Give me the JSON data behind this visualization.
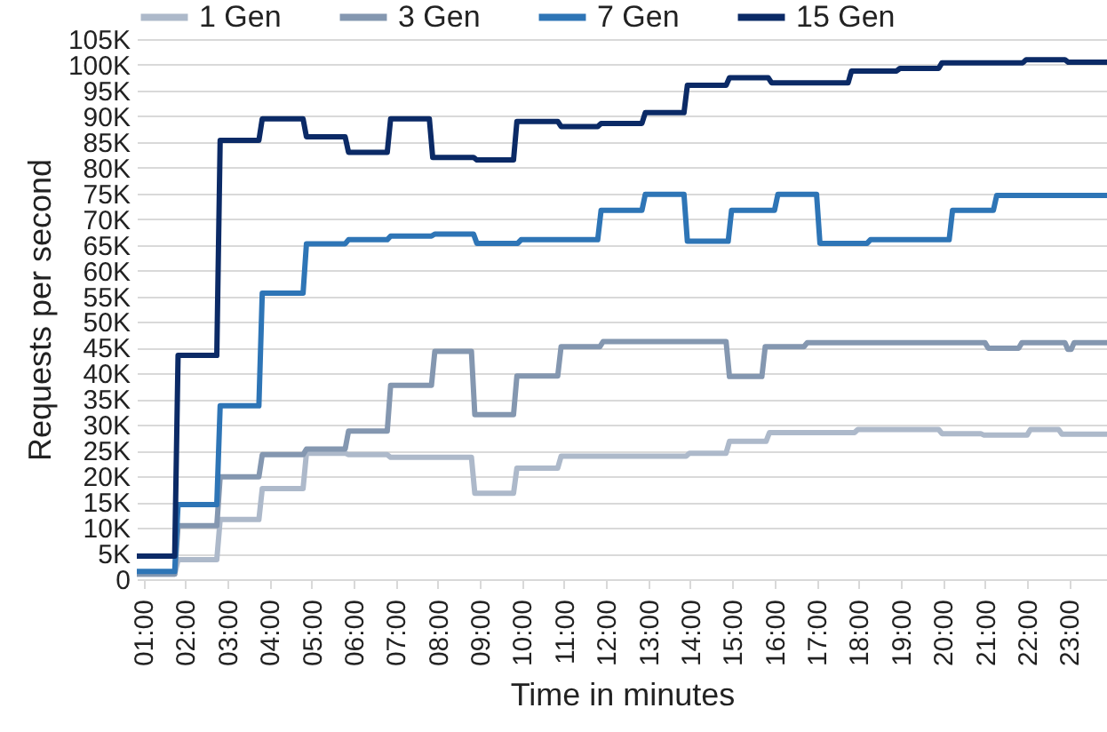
{
  "chart_data": {
    "type": "line",
    "xlabel": "Time in minutes",
    "ylabel": "Requests per second",
    "legend": "top",
    "grid": "y",
    "xlim": [
      0.85,
      23.9
    ],
    "xticks": [
      {
        "value": 1,
        "label": "01:00"
      },
      {
        "value": 2,
        "label": "02:00"
      },
      {
        "value": 3,
        "label": "03:00"
      },
      {
        "value": 4,
        "label": "04:00"
      },
      {
        "value": 5,
        "label": "05:00"
      },
      {
        "value": 6,
        "label": "06:00"
      },
      {
        "value": 7,
        "label": "07:00"
      },
      {
        "value": 8,
        "label": "08:00"
      },
      {
        "value": 9,
        "label": "09:00"
      },
      {
        "value": 10,
        "label": "10:00"
      },
      {
        "value": 11,
        "label": "11:00"
      },
      {
        "value": 12,
        "label": "12:00"
      },
      {
        "value": 13,
        "label": "13:00"
      },
      {
        "value": 14,
        "label": "14:00"
      },
      {
        "value": 15,
        "label": "15:00"
      },
      {
        "value": 16,
        "label": "16:00"
      },
      {
        "value": 17,
        "label": "17:00"
      },
      {
        "value": 18,
        "label": "18:00"
      },
      {
        "value": 19,
        "label": "19:00"
      },
      {
        "value": 20,
        "label": "20:00"
      },
      {
        "value": 21,
        "label": "21:00"
      },
      {
        "value": 22,
        "label": "22:00"
      },
      {
        "value": 23,
        "label": "23:00"
      }
    ],
    "ylim": [
      0,
      105000
    ],
    "yticks": [
      0,
      {
        "value": 5000,
        "label": "5K"
      },
      {
        "value": 10000,
        "label": "10K"
      },
      {
        "value": 15000,
        "label": "15K"
      },
      {
        "value": 20000,
        "label": "20K"
      },
      {
        "value": 25000,
        "label": "25K"
      },
      {
        "value": 30000,
        "label": "30K"
      },
      {
        "value": 35000,
        "label": "35K"
      },
      {
        "value": 40000,
        "label": "40K"
      },
      {
        "value": 45000,
        "label": "45K"
      },
      {
        "value": 50000,
        "label": "50K"
      },
      {
        "value": 55000,
        "label": "55K"
      },
      {
        "value": 60000,
        "label": "60K"
      },
      {
        "value": 65000,
        "label": "65K"
      },
      {
        "value": 70000,
        "label": "70K"
      },
      {
        "value": 75000,
        "label": "75K"
      },
      {
        "value": 80000,
        "label": "80K"
      },
      {
        "value": 85000,
        "label": "85K"
      },
      {
        "value": 90000,
        "label": "90K"
      },
      {
        "value": 95000,
        "label": "95K"
      },
      {
        "value": 100000,
        "label": "100K"
      },
      {
        "value": 105000,
        "label": "105K"
      }
    ],
    "series": [
      {
        "name": "1 Gen",
        "color": "#adb9ca",
        "x": [
          0.85,
          1.75,
          1.83,
          2.75,
          2.83,
          3.75,
          3.83,
          4.8,
          4.88,
          5.8,
          5.88,
          6.8,
          6.88,
          8.8,
          8.88,
          9.8,
          9.88,
          10.85,
          10.93,
          13.9,
          13.98,
          14.85,
          14.93,
          15.8,
          15.88,
          17.9,
          17.98,
          19.9,
          19.98,
          20.9,
          20.98,
          22.0,
          22.08,
          22.75,
          22.83,
          23.9
        ],
        "values": [
          1000,
          1000,
          3800,
          3800,
          11600,
          11600,
          17600,
          17600,
          24500,
          24500,
          24200,
          24200,
          23700,
          23700,
          16700,
          16700,
          21600,
          21600,
          23900,
          23900,
          24500,
          24500,
          26800,
          26800,
          28500,
          28500,
          29100,
          29100,
          28300,
          28300,
          28000,
          28000,
          29100,
          29100,
          28200,
          28200
        ]
      },
      {
        "name": "3 Gen",
        "color": "#8497b0",
        "x": [
          0.85,
          1.75,
          1.83,
          2.75,
          2.83,
          3.75,
          3.83,
          4.8,
          4.88,
          5.8,
          5.88,
          6.8,
          6.88,
          7.85,
          7.93,
          8.8,
          8.88,
          9.8,
          9.88,
          10.85,
          10.93,
          11.85,
          11.93,
          14.85,
          14.93,
          15.7,
          15.78,
          16.7,
          16.78,
          21.0,
          21.08,
          21.8,
          21.88,
          22.9,
          22.97,
          23.05,
          23.12,
          23.9
        ],
        "values": [
          1000,
          1000,
          10400,
          10400,
          19900,
          19900,
          24200,
          24200,
          25300,
          25300,
          28800,
          28800,
          37700,
          37700,
          44300,
          44300,
          32000,
          32000,
          39500,
          39500,
          45200,
          45200,
          46200,
          46200,
          39400,
          39400,
          45200,
          45200,
          46000,
          46000,
          44900,
          44900,
          46000,
          46000,
          44700,
          44700,
          46000,
          46000
        ]
      },
      {
        "name": "7 Gen",
        "color": "#2e75b6",
        "x": [
          0.85,
          1.75,
          1.83,
          2.75,
          2.83,
          3.75,
          3.83,
          4.8,
          4.88,
          5.8,
          5.88,
          6.8,
          6.88,
          7.85,
          7.93,
          8.85,
          8.93,
          9.9,
          9.98,
          11.8,
          11.88,
          12.85,
          12.93,
          13.85,
          13.93,
          14.9,
          14.98,
          16.0,
          16.08,
          17.0,
          17.08,
          18.2,
          18.28,
          20.15,
          20.23,
          21.2,
          21.28,
          23.9
        ],
        "values": [
          1500,
          1500,
          14500,
          14500,
          33700,
          33700,
          55600,
          55600,
          65200,
          65200,
          66000,
          66000,
          66700,
          66700,
          67100,
          67100,
          65300,
          65300,
          66000,
          66000,
          71700,
          71700,
          74800,
          74800,
          65700,
          65700,
          71700,
          71700,
          74800,
          74800,
          65300,
          65300,
          66000,
          66000,
          71700,
          71700,
          74600,
          74600
        ]
      },
      {
        "name": "15 Gen",
        "color": "#0b2a66",
        "x": [
          0.85,
          1.75,
          1.83,
          2.75,
          2.83,
          3.75,
          3.83,
          4.8,
          4.88,
          5.8,
          5.88,
          6.8,
          6.88,
          7.8,
          7.88,
          8.85,
          8.93,
          9.8,
          9.88,
          10.85,
          10.93,
          11.8,
          11.88,
          12.85,
          12.93,
          13.85,
          13.93,
          14.85,
          14.93,
          15.85,
          15.93,
          17.75,
          17.83,
          18.9,
          18.98,
          19.9,
          19.98,
          21.9,
          21.98,
          22.9,
          22.98,
          23.9
        ],
        "values": [
          4500,
          4500,
          43500,
          43500,
          85300,
          85300,
          89500,
          89500,
          86000,
          86000,
          83000,
          83000,
          89500,
          89500,
          82000,
          82000,
          81500,
          81500,
          89000,
          89000,
          88000,
          88000,
          88600,
          88600,
          90700,
          90700,
          96000,
          96000,
          97500,
          97500,
          96500,
          96500,
          98800,
          98800,
          99300,
          99300,
          100400,
          100400,
          101000,
          101000,
          100500,
          100500
        ]
      }
    ]
  }
}
